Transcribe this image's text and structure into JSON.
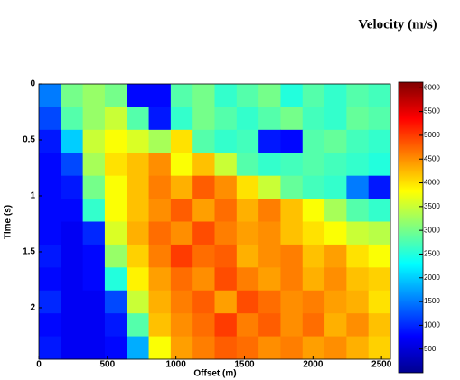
{
  "chart_data": {
    "type": "heatmap",
    "colorbar_label": "Velocity (m/s)",
    "xlabel": "Offset (m)",
    "ylabel": "Time (s)",
    "xlim": [
      0,
      2565
    ],
    "ylim": [
      0,
      2.46
    ],
    "y_reversed": true,
    "xticks": [
      0,
      500,
      1000,
      1500,
      2000,
      2500
    ],
    "yticks": [
      0,
      0.5,
      1,
      1.5,
      2
    ],
    "colormap": "jet",
    "clim": [
      0,
      6120
    ],
    "cticks": [
      500,
      1000,
      1500,
      2000,
      2500,
      3000,
      3500,
      4000,
      4500,
      5000,
      5500,
      6000
    ],
    "z": [
      [
        1500,
        3000,
        3200,
        3000,
        800,
        800,
        2800,
        3000,
        2600,
        2800,
        3000,
        2500,
        2800,
        2600,
        2800,
        2700
      ],
      [
        1200,
        2800,
        3200,
        3500,
        2800,
        900,
        2600,
        3000,
        2800,
        2600,
        2800,
        3000,
        2700,
        2600,
        2900,
        2800
      ],
      [
        900,
        2000,
        3500,
        3800,
        3600,
        3300,
        4000,
        2800,
        2600,
        2700,
        900,
        800,
        2800,
        2900,
        2700,
        2600
      ],
      [
        800,
        1200,
        3300,
        4000,
        4200,
        4500,
        3800,
        4200,
        3500,
        2800,
        2600,
        2700,
        2800,
        2700,
        2600,
        2500
      ],
      [
        800,
        900,
        3000,
        3800,
        4200,
        4600,
        4300,
        4800,
        4500,
        4000,
        3500,
        2900,
        2700,
        2600,
        1500,
        900
      ],
      [
        800,
        800,
        2600,
        3800,
        4200,
        4500,
        4800,
        4400,
        4700,
        4300,
        4600,
        4200,
        3800,
        3300,
        2800,
        2600
      ],
      [
        800,
        700,
        1000,
        3600,
        4300,
        4700,
        4500,
        4900,
        4600,
        4400,
        4500,
        4200,
        4000,
        3800,
        3500,
        3400
      ],
      [
        900,
        700,
        800,
        3200,
        4100,
        4600,
        5000,
        4700,
        4800,
        4300,
        4500,
        4600,
        4200,
        4400,
        4000,
        3800
      ],
      [
        800,
        700,
        800,
        2500,
        3900,
        4400,
        4700,
        4500,
        4900,
        4600,
        4400,
        4600,
        4300,
        4500,
        4200,
        4100
      ],
      [
        1000,
        700,
        700,
        1200,
        3500,
        4300,
        4600,
        4800,
        4400,
        4900,
        4700,
        4500,
        4600,
        4400,
        4300,
        4000
      ],
      [
        800,
        700,
        700,
        900,
        2800,
        4200,
        4500,
        4700,
        5000,
        4600,
        4800,
        4500,
        4700,
        4300,
        4500,
        4200
      ],
      [
        900,
        700,
        700,
        800,
        1800,
        3800,
        4400,
        4600,
        4800,
        4700,
        4500,
        4600,
        4400,
        4500,
        4300,
        4100
      ]
    ]
  }
}
